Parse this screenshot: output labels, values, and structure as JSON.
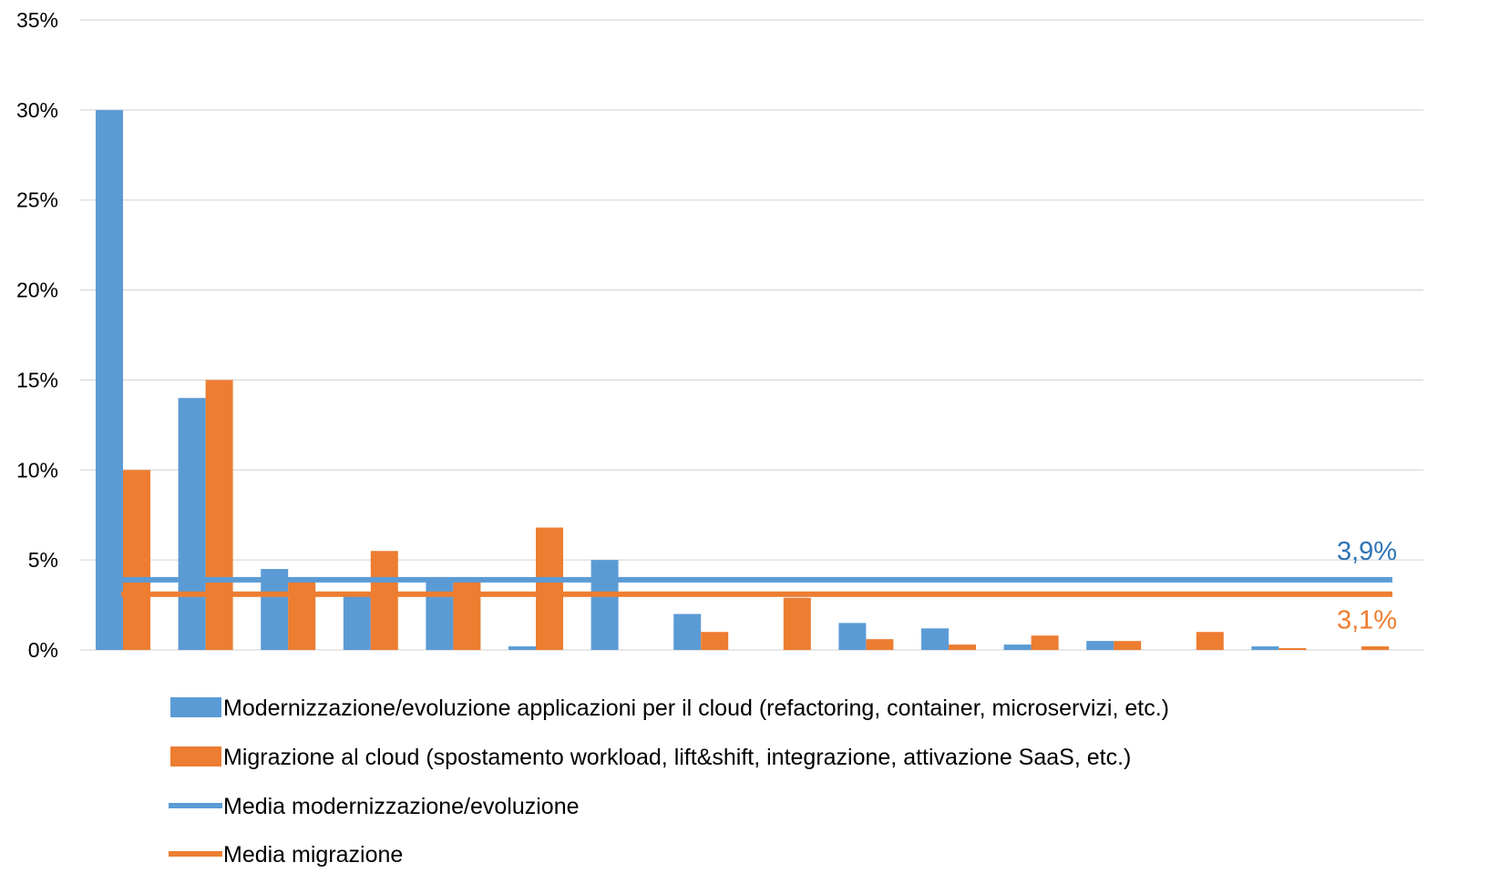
{
  "chart_data": {
    "type": "bar",
    "categories": [
      "",
      "",
      "",
      "",
      "",
      "",
      "",
      "",
      "",
      "",
      "",
      "",
      "",
      "",
      "",
      "",
      ""
    ],
    "ylim": [
      0,
      35
    ],
    "yticks": [
      0,
      5,
      10,
      15,
      20,
      25,
      30,
      35
    ],
    "ytick_labels": [
      "0%",
      "5%",
      "10%",
      "15%",
      "20%",
      "25%",
      "30%",
      "35%"
    ],
    "grid": true,
    "legend_position": "bottom",
    "series": [
      {
        "name": "Modernizzazione/evoluzione applicazioni per il cloud (refactoring, container, microservizi, etc.)",
        "color": "#5B9BD5",
        "values": [
          30,
          14,
          4.5,
          3,
          4,
          0.2,
          5,
          2,
          0,
          1.5,
          1.2,
          0.3,
          0.5,
          0,
          0.2,
          0,
          0
        ]
      },
      {
        "name": "Migrazione al cloud (spostamento workload, lift&shift, integrazione, attivazione SaaS, etc.)",
        "color": "#ED7D31",
        "values": [
          10,
          15,
          4,
          5.5,
          3.8,
          6.8,
          0,
          1,
          2.9,
          0.6,
          0.3,
          0.8,
          0.5,
          1,
          0.1,
          0.2,
          0
        ]
      }
    ],
    "averages": [
      {
        "name": "Media modernizzazione/evoluzione",
        "value": 3.9,
        "label": "3,9%",
        "color": "#5B9BD5",
        "label_color": "#2E75B6"
      },
      {
        "name": "Media migrazione",
        "value": 3.1,
        "label": "3,1%",
        "color": "#ED7D31",
        "label_color": "#ED7D31"
      }
    ]
  }
}
